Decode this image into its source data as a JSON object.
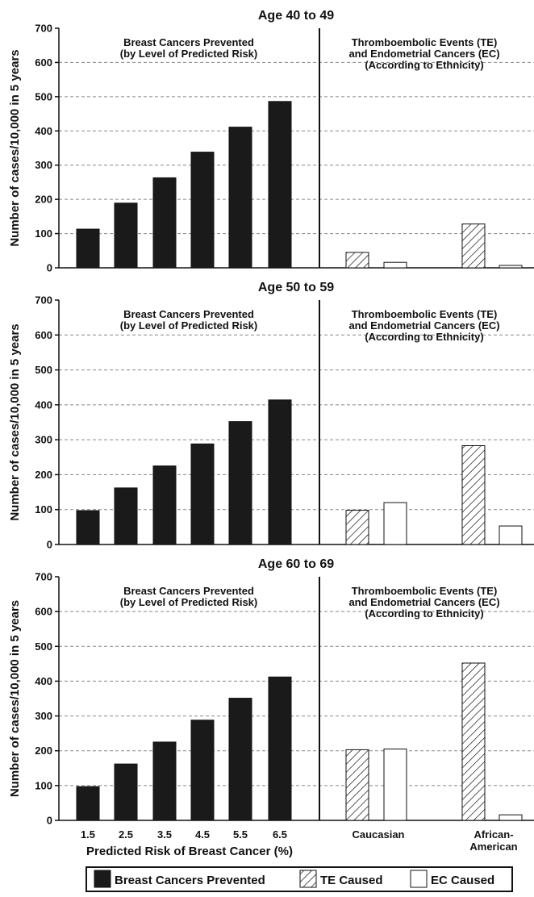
{
  "chart_data": [
    {
      "type": "bar",
      "title": "Age 40 to 49",
      "ylabel": "Number of cases/10,000 in 5 years",
      "ylim": [
        0,
        700
      ],
      "yticks": [
        0,
        100,
        200,
        300,
        400,
        500,
        600,
        700
      ],
      "grid": true,
      "left_section": {
        "heading": [
          "Breast Cancers Prevented",
          "(by Level of Predicted Risk)"
        ],
        "categories": [
          "1.5",
          "2.5",
          "3.5",
          "4.5",
          "5.5",
          "6.5"
        ],
        "series": [
          {
            "name": "Breast Cancers Prevented",
            "values": [
              113,
              189,
              263,
              338,
              411,
              486
            ]
          }
        ]
      },
      "right_section": {
        "heading": [
          "Thromboembolic Events (TE)",
          "and Endometrial Cancers (EC)",
          "(According to Ethnicity)"
        ],
        "categories": [
          "Caucasian",
          "African-American"
        ],
        "series": [
          {
            "name": "TE Caused",
            "values": [
              45,
              128
            ]
          },
          {
            "name": "EC Caused",
            "values": [
              16,
              7
            ]
          }
        ]
      }
    },
    {
      "type": "bar",
      "title": "Age 50 to 59",
      "ylabel": "Number of cases/10,000 in 5 years",
      "ylim": [
        0,
        700
      ],
      "yticks": [
        0,
        100,
        200,
        300,
        400,
        500,
        600,
        700
      ],
      "grid": true,
      "left_section": {
        "heading": [
          "Breast Cancers Prevented",
          "(by Level of Predicted Risk)"
        ],
        "categories": [
          "1.5",
          "2.5",
          "3.5",
          "4.5",
          "5.5",
          "6.5"
        ],
        "series": [
          {
            "name": "Breast Cancers Prevented",
            "values": [
              97,
              162,
              225,
              288,
              352,
              414
            ]
          }
        ]
      },
      "right_section": {
        "heading": [
          "Thromboembolic Events (TE)",
          "and Endometrial Cancers (EC)",
          "(According to Ethnicity)"
        ],
        "categories": [
          "Caucasian",
          "African-American"
        ],
        "series": [
          {
            "name": "TE Caused",
            "values": [
              98,
              283
            ]
          },
          {
            "name": "EC Caused",
            "values": [
              120,
              53
            ]
          }
        ]
      }
    },
    {
      "type": "bar",
      "title": "Age 60 to 69",
      "ylabel": "Number of cases/10,000 in 5 years",
      "ylim": [
        0,
        700
      ],
      "yticks": [
        0,
        100,
        200,
        300,
        400,
        500,
        600,
        700
      ],
      "grid": true,
      "xlabel": "Predicted Risk of Breast Cancer (%)",
      "left_section": {
        "heading": [
          "Breast Cancers Prevented",
          "(by Level of Predicted Risk)"
        ],
        "categories": [
          "1.5",
          "2.5",
          "3.5",
          "4.5",
          "5.5",
          "6.5"
        ],
        "series": [
          {
            "name": "Breast Cancers Prevented",
            "values": [
              97,
              162,
              225,
              288,
              351,
              412
            ]
          }
        ]
      },
      "right_section": {
        "heading": [
          "Thromboembolic Events (TE)",
          "and Endometrial Cancers (EC)",
          "(According to Ethnicity)"
        ],
        "categories": [
          "Caucasian",
          "African-American"
        ],
        "category_display": [
          [
            "Caucasian"
          ],
          [
            "African-",
            "American"
          ]
        ],
        "series": [
          {
            "name": "TE Caused",
            "values": [
              203,
              452
            ]
          },
          {
            "name": "EC Caused",
            "values": [
              205,
              16
            ]
          }
        ]
      }
    }
  ],
  "legend": {
    "placement": "bottom",
    "items": [
      {
        "label": "Breast Cancers Prevented",
        "style": "solid-black"
      },
      {
        "label": "TE Caused",
        "style": "hatched"
      },
      {
        "label": "EC Caused",
        "style": "white"
      }
    ]
  },
  "colors": {
    "prevented": "#1a1a1a",
    "te": "#ffffff",
    "ec": "#ffffff",
    "grid": "#888888"
  }
}
